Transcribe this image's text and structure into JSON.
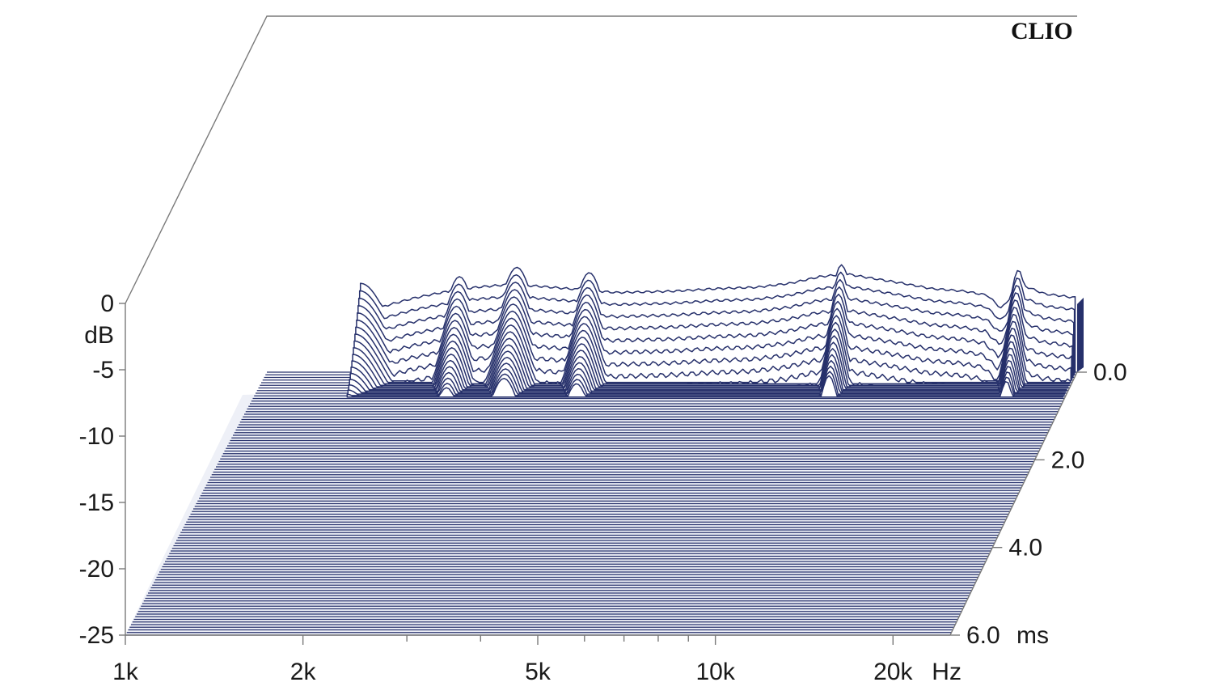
{
  "brand": "CLIO",
  "chart_data": {
    "type": "waterfall",
    "title": "",
    "x_axis": {
      "unit": "Hz",
      "scale": "log",
      "range": [
        1000,
        25000
      ],
      "tick_labels": [
        {
          "value": 1000,
          "label": "1k"
        },
        {
          "value": 2000,
          "label": "2k"
        },
        {
          "value": 5000,
          "label": "5k"
        },
        {
          "value": 10000,
          "label": "10k"
        },
        {
          "value": 20000,
          "label": "20k"
        }
      ],
      "minor_ticks": [
        3000,
        4000,
        6000,
        7000,
        8000,
        9000
      ]
    },
    "y_axis": {
      "label": "dB",
      "range": [
        -25,
        0
      ],
      "tick_labels": [
        "0",
        "-5",
        "-10",
        "-15",
        "-20",
        "-25"
      ],
      "tick_values": [
        0,
        -5,
        -10,
        -15,
        -20,
        -25
      ]
    },
    "z_axis": {
      "unit": "ms",
      "range": [
        0,
        6
      ],
      "tick_labels": [
        {
          "value": 0,
          "label": "0.0"
        },
        {
          "value": 2,
          "label": "2.0"
        },
        {
          "value": 4,
          "label": "4.0"
        },
        {
          "value": 6,
          "label": "6.0"
        }
      ]
    },
    "slice_count": 18,
    "time_step_ms": 0.0333,
    "floor_db": -7,
    "line_color": "#26306b",
    "initial_response": {
      "frequency_hz": [
        1450,
        1500,
        1600,
        1800,
        2000,
        2300,
        2600,
        2900,
        3300,
        4000,
        5000,
        6000,
        7000,
        8000,
        9000,
        10000,
        11000,
        12500,
        14000,
        16000,
        17500,
        18500,
        20000,
        22000,
        25000
      ],
      "level_db": [
        -3.4,
        -2.6,
        -2.0,
        -1.4,
        -1.0,
        -0.6,
        -0.4,
        -0.5,
        -0.7,
        -1.0,
        -0.9,
        -0.7,
        -0.6,
        -0.3,
        0.2,
        0.4,
        0.1,
        -0.3,
        -0.7,
        -0.9,
        -1.2,
        -2.2,
        -0.4,
        -1.1,
        -1.4
      ]
    },
    "decay_bands": [
      {
        "center_hz": 1450,
        "width_oct": 0.22,
        "tail_db": -6.8
      },
      {
        "center_hz": 2150,
        "width_oct": 0.12,
        "tail_db": -6.3
      },
      {
        "center_hz": 2700,
        "width_oct": 0.13,
        "tail_db": -5.6
      },
      {
        "center_hz": 3600,
        "width_oct": 0.12,
        "tail_db": -6.0
      },
      {
        "center_hz": 9800,
        "width_oct": 0.08,
        "tail_db": -5.4
      },
      {
        "center_hz": 19800,
        "width_oct": 0.07,
        "tail_db": -5.8
      }
    ]
  }
}
